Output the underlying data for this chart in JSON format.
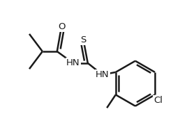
{
  "bg_color": "#ffffff",
  "line_color": "#1a1a1a",
  "bond_width": 1.8,
  "text_color": "#1a1a1a",
  "figsize": [
    2.81,
    1.9
  ],
  "dpi": 100,
  "atoms": {
    "O_label": "O",
    "S_label": "S",
    "NH1_label": "HN",
    "NH2_label": "HN",
    "Cl_label": "Cl"
  },
  "xlim": [
    0.0,
    1.0
  ],
  "ylim": [
    0.05,
    0.95
  ]
}
